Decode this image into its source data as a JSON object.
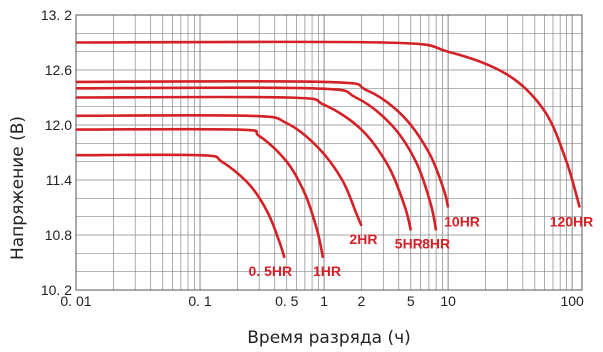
{
  "chart_data": {
    "type": "line",
    "title": "",
    "xlabel": "Время разряда (ч)",
    "ylabel": "Напряжение (В)",
    "xscale": "log",
    "xlim": [
      0.01,
      120
    ],
    "ylim": [
      10.2,
      13.2
    ],
    "grid": true,
    "legend": "none",
    "series_color": "#d42027",
    "grid_color": "#888888",
    "x_ticks": [
      {
        "value": 0.01,
        "label": "0. 01"
      },
      {
        "value": 0.1,
        "label": "0. 1"
      },
      {
        "value": 0.5,
        "label": "0. 5"
      },
      {
        "value": 1,
        "label": "1"
      },
      {
        "value": 2,
        "label": "2"
      },
      {
        "value": 5,
        "label": "5"
      },
      {
        "value": 10,
        "label": "10"
      },
      {
        "value": 100,
        "label": "100"
      }
    ],
    "y_ticks": [
      {
        "value": 10.2,
        "label": "10. 2"
      },
      {
        "value": 10.8,
        "label": "10.8"
      },
      {
        "value": 11.4,
        "label": "11.4"
      },
      {
        "value": 12.0,
        "label": "12.0"
      },
      {
        "value": 12.6,
        "label": "12.6"
      },
      {
        "value": 13.2,
        "label": "13. 2"
      }
    ],
    "series": [
      {
        "label": "0. 5HR",
        "points": [
          [
            0.01,
            11.67
          ],
          [
            0.1,
            11.67
          ],
          [
            0.15,
            11.6
          ],
          [
            0.25,
            11.35
          ],
          [
            0.35,
            11.05
          ],
          [
            0.43,
            10.75
          ],
          [
            0.48,
            10.55
          ]
        ]
      },
      {
        "label": "1HR",
        "points": [
          [
            0.01,
            11.95
          ],
          [
            0.2,
            11.95
          ],
          [
            0.3,
            11.88
          ],
          [
            0.5,
            11.6
          ],
          [
            0.7,
            11.25
          ],
          [
            0.88,
            10.85
          ],
          [
            0.98,
            10.55
          ]
        ]
      },
      {
        "label": "2HR",
        "points": [
          [
            0.01,
            12.1
          ],
          [
            0.25,
            12.1
          ],
          [
            0.5,
            12.02
          ],
          [
            0.9,
            11.75
          ],
          [
            1.4,
            11.4
          ],
          [
            1.8,
            11.05
          ],
          [
            2.0,
            10.9
          ]
        ]
      },
      {
        "label": "5HR",
        "points": [
          [
            0.01,
            12.3
          ],
          [
            0.5,
            12.3
          ],
          [
            1.0,
            12.22
          ],
          [
            2.0,
            11.95
          ],
          [
            3.3,
            11.55
          ],
          [
            4.5,
            11.1
          ],
          [
            5.0,
            10.85
          ]
        ]
      },
      {
        "label": "8HR",
        "points": [
          [
            0.01,
            12.4
          ],
          [
            0.8,
            12.4
          ],
          [
            1.8,
            12.3
          ],
          [
            3.5,
            12.0
          ],
          [
            5.5,
            11.6
          ],
          [
            7.2,
            11.15
          ],
          [
            8.0,
            10.85
          ]
        ]
      },
      {
        "label": "10HR",
        "points": [
          [
            0.01,
            12.47
          ],
          [
            1.0,
            12.47
          ],
          [
            2.2,
            12.38
          ],
          [
            4.3,
            12.1
          ],
          [
            7.0,
            11.7
          ],
          [
            9.2,
            11.3
          ],
          [
            10.0,
            11.1
          ]
        ]
      },
      {
        "label": "120HR",
        "points": [
          [
            0.01,
            12.9
          ],
          [
            3.0,
            12.9
          ],
          [
            10,
            12.8
          ],
          [
            30,
            12.55
          ],
          [
            60,
            12.15
          ],
          [
            90,
            11.6
          ],
          [
            115,
            11.1
          ]
        ]
      }
    ]
  }
}
